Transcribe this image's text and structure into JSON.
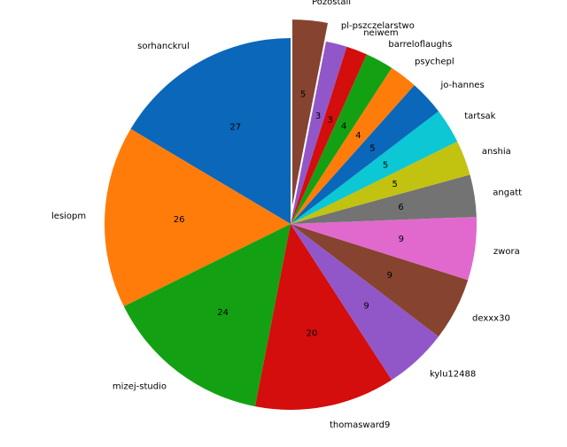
{
  "chart_data": {
    "type": "pie",
    "categories": [
      "sorhanckrul",
      "lesiopm",
      "mizej-studio",
      "thomasward9",
      "kylu12488",
      "dexxx30",
      "zwora",
      "angatt",
      "anshia",
      "tartsak",
      "jo-hannes",
      "psychepl",
      "barreloflaughs",
      "neiwem",
      "pl-pszczelarstwo",
      "Pozostali"
    ],
    "values": [
      27,
      26,
      24,
      20,
      9,
      9,
      9,
      6,
      5,
      5,
      5,
      4,
      4,
      3,
      3,
      5
    ],
    "colors": [
      "#0b67b9",
      "#ff7c0a",
      "#13a113",
      "#d40d0d",
      "#9157c9",
      "#86432f",
      "#e169cd",
      "#737373",
      "#c2c211",
      "#0cc7d4",
      "#0b67b9",
      "#ff7c0a",
      "#13a113",
      "#d40d0d",
      "#9157c9",
      "#86432f"
    ]
  }
}
